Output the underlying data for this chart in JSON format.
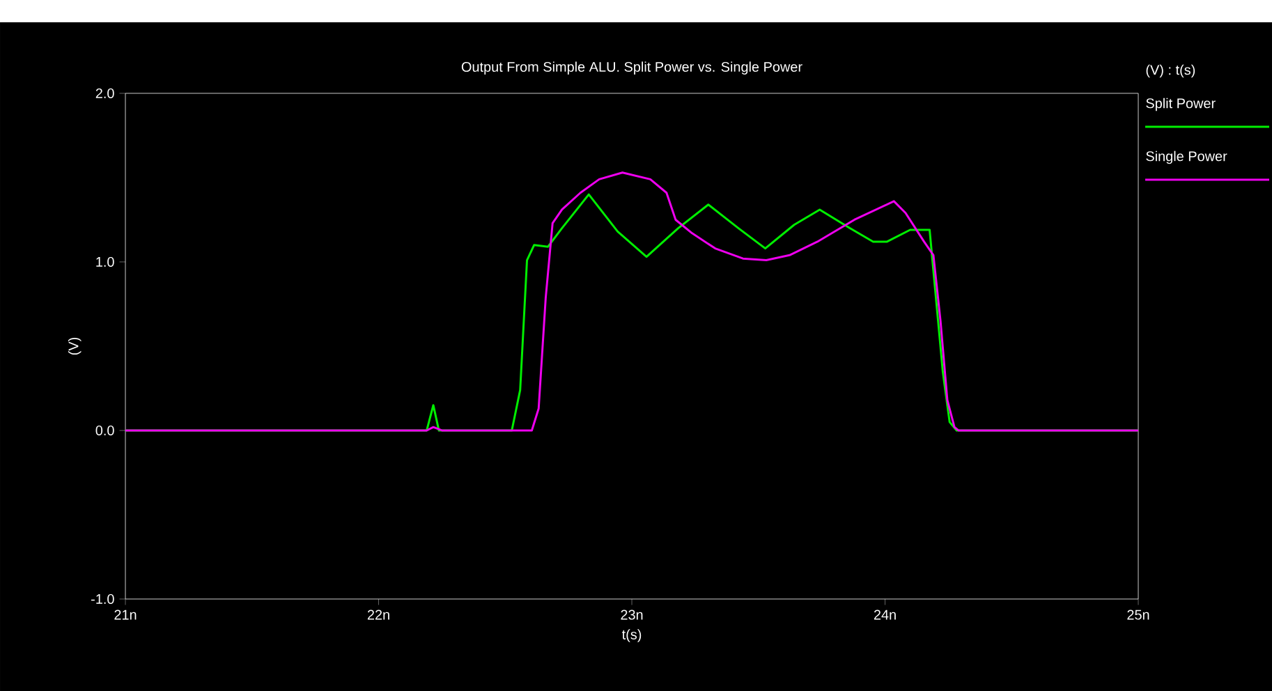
{
  "chart_data": {
    "type": "line",
    "title": "Output From Simple ALU.  Split Power vs. Single Power",
    "xlabel": "t(s)",
    "ylabel": "(V)",
    "legend_title": "(V) : t(s)",
    "legend": "right",
    "grid": false,
    "marker": "none",
    "line_style": "solid",
    "xlim": [
      21,
      25
    ],
    "ylim": [
      -1,
      2
    ],
    "xticks": [
      {
        "value": 21,
        "label": "21n"
      },
      {
        "value": 22,
        "label": "22n"
      },
      {
        "value": 23,
        "label": "23n"
      },
      {
        "value": 24,
        "label": "24n"
      },
      {
        "value": 25,
        "label": "25n"
      }
    ],
    "yticks": [
      {
        "value": -1,
        "label": "-1.0"
      },
      {
        "value": 0,
        "label": "0.0"
      },
      {
        "value": 1,
        "label": "1.0"
      },
      {
        "value": 2,
        "label": "2.0"
      }
    ],
    "series": [
      {
        "name": "Split Power",
        "color": "#00ee00",
        "x": [
          21,
          22.19,
          22.216,
          22.238,
          22.526,
          22.559,
          22.586,
          22.614,
          22.669,
          22.724,
          22.83,
          22.944,
          23.058,
          23.183,
          23.302,
          23.421,
          23.527,
          23.641,
          23.742,
          23.861,
          23.953,
          24.008,
          24.099,
          24.176,
          24.228,
          24.255,
          24.283,
          25
        ],
        "values": [
          0,
          0,
          0.15,
          0,
          0,
          0.24,
          1.01,
          1.1,
          1.09,
          1.2,
          1.4,
          1.18,
          1.03,
          1.2,
          1.34,
          1.2,
          1.08,
          1.22,
          1.31,
          1.2,
          1.12,
          1.12,
          1.19,
          1.19,
          0.35,
          0.05,
          0,
          0
        ]
      },
      {
        "name": "Single Power",
        "color": "#ee00ee",
        "x": [
          21,
          22.19,
          22.216,
          22.25,
          22.605,
          22.632,
          22.66,
          22.687,
          22.724,
          22.797,
          22.871,
          22.963,
          23.073,
          23.137,
          23.173,
          23.238,
          23.329,
          23.439,
          23.531,
          23.623,
          23.733,
          23.879,
          24.035,
          24.081,
          24.154,
          24.191,
          24.219,
          24.246,
          24.274,
          24.29,
          25
        ],
        "values": [
          0,
          0,
          0.02,
          0,
          0,
          0.13,
          0.79,
          1.23,
          1.31,
          1.41,
          1.49,
          1.53,
          1.49,
          1.41,
          1.25,
          1.17,
          1.08,
          1.02,
          1.01,
          1.04,
          1.12,
          1.25,
          1.36,
          1.29,
          1.12,
          1.04,
          0.65,
          0.18,
          0.02,
          0,
          0
        ]
      }
    ]
  }
}
